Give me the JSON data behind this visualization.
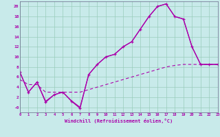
{
  "xlabel": "Windchill (Refroidissement éolien,°C)",
  "bg_color": "#c8eaea",
  "line_color": "#aa00aa",
  "grid_color": "#99ccbb",
  "x_min": 0,
  "x_max": 23,
  "y_min": -1,
  "y_max": 21,
  "line1_x": [
    0,
    1,
    2,
    3,
    4,
    5,
    6,
    7,
    8,
    9,
    10,
    11,
    12,
    13,
    14,
    15,
    16,
    17,
    18,
    19,
    20,
    21,
    22,
    23
  ],
  "line1_y": [
    7,
    3,
    5,
    1,
    2.5,
    3.0,
    1.2,
    -0.2,
    6.5,
    8.5,
    10,
    10.5,
    12.0,
    13.0,
    15.5,
    18.0,
    20.0,
    20.5,
    18.0,
    17.5,
    12.0,
    8.5,
    8.5,
    8.5
  ],
  "line2_x": [
    0,
    1,
    2,
    3,
    4,
    5,
    6,
    7,
    8,
    9,
    10,
    11,
    12,
    13,
    14,
    15,
    16,
    17,
    18,
    19,
    20,
    21,
    22,
    23
  ],
  "line2_y": [
    7,
    3,
    5,
    1.2,
    2.5,
    3.0,
    1.3,
    0.0,
    6.5,
    8.5,
    10,
    10.5,
    12.0,
    13.0,
    15.5,
    18.0,
    20.0,
    20.5,
    18.0,
    17.5,
    12.0,
    8.5,
    8.5,
    8.5
  ],
  "line3_x": [
    0,
    1,
    2,
    3,
    4,
    5,
    6,
    7,
    8,
    9,
    10,
    11,
    12,
    13,
    14,
    15,
    16,
    17,
    18,
    19,
    20,
    21,
    22,
    23
  ],
  "line3_y": [
    5.5,
    4.5,
    4.5,
    3.0,
    3.0,
    3.0,
    3.0,
    3.0,
    3.5,
    4.0,
    4.5,
    5.0,
    5.5,
    6.0,
    6.5,
    7.0,
    7.5,
    8.0,
    8.3,
    8.5,
    8.5,
    8.5,
    8.5,
    8.5
  ],
  "ytick_values": [
    0,
    2,
    4,
    6,
    8,
    10,
    12,
    14,
    16,
    18,
    20
  ],
  "ytick_labels": [
    "-0",
    "2",
    "4",
    "6",
    "8",
    "10",
    "12",
    "14",
    "16",
    "18",
    "20"
  ],
  "xtick_labels": [
    "0",
    "1",
    "2",
    "3",
    "4",
    "5",
    "6",
    "7",
    "8",
    "9",
    "10",
    "11",
    "12",
    "13",
    "14",
    "15",
    "16",
    "17",
    "18",
    "19",
    "20",
    "21",
    "22",
    "23"
  ]
}
